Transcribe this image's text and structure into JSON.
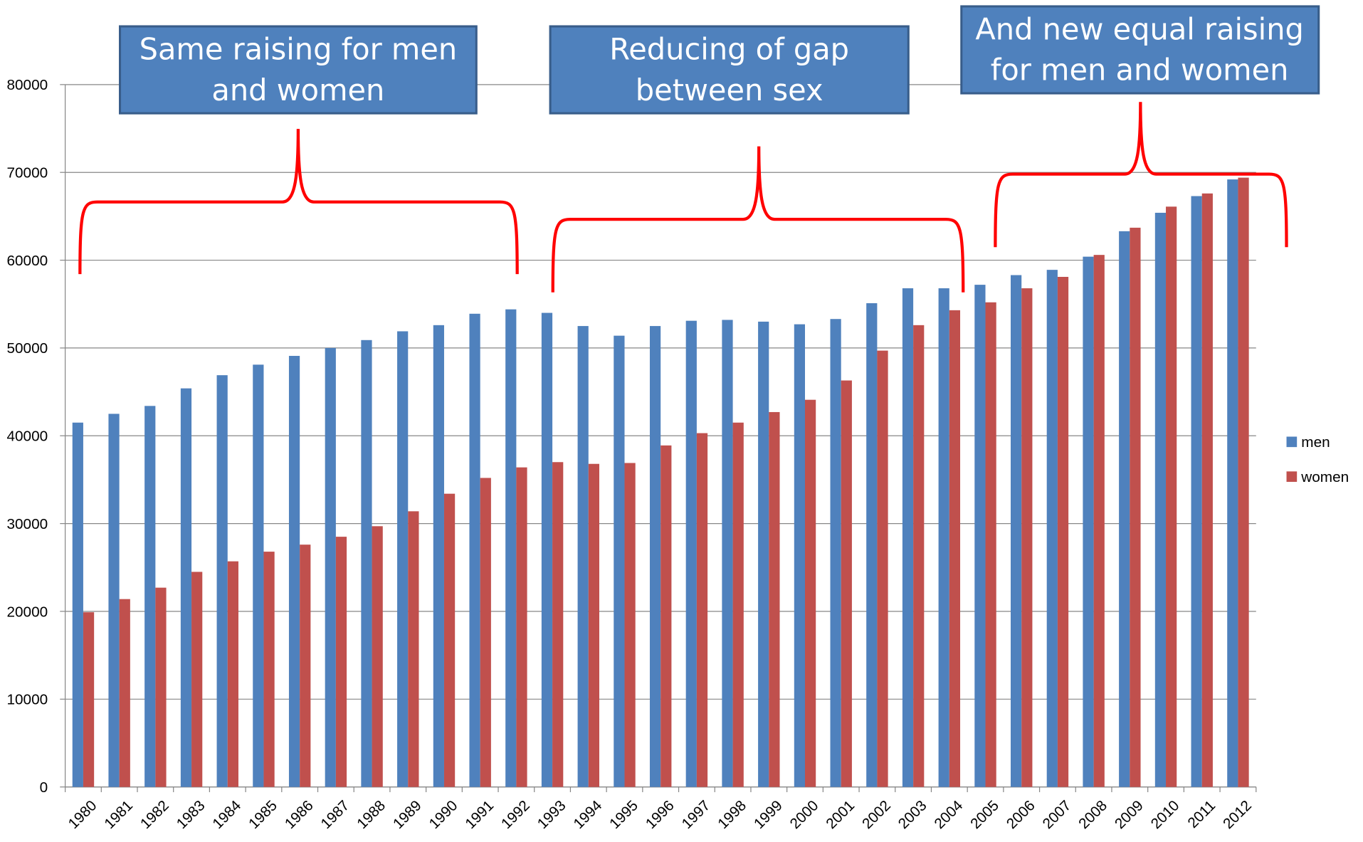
{
  "chart_data": {
    "type": "bar",
    "categories": [
      "1980",
      "1981",
      "1982",
      "1983",
      "1984",
      "1985",
      "1986",
      "1987",
      "1988",
      "1989",
      "1990",
      "1991",
      "1992",
      "1993",
      "1994",
      "1995",
      "1996",
      "1997",
      "1998",
      "1999",
      "2000",
      "2001",
      "2002",
      "2003",
      "2004",
      "2005",
      "2006",
      "2007",
      "2008",
      "2009",
      "2010",
      "2011",
      "2012"
    ],
    "series": [
      {
        "name": "men",
        "color": "#4f81bd",
        "values": [
          41500,
          42500,
          43400,
          45400,
          46900,
          48100,
          49100,
          50000,
          50900,
          51900,
          52600,
          53900,
          54400,
          54000,
          52500,
          51400,
          52500,
          53100,
          53200,
          53000,
          52700,
          53300,
          55100,
          56800,
          56800,
          57200,
          58300,
          58900,
          60400,
          63300,
          65400,
          67300,
          69200
        ]
      },
      {
        "name": "women",
        "color": "#c0504d",
        "values": [
          19900,
          21400,
          22700,
          24500,
          25700,
          26800,
          27600,
          28500,
          29700,
          31400,
          33400,
          35200,
          36400,
          37000,
          36800,
          36900,
          38900,
          40300,
          41500,
          42700,
          44100,
          46300,
          49700,
          52600,
          54300,
          55200,
          56800,
          58100,
          60600,
          63700,
          66100,
          67600,
          69400
        ]
      }
    ],
    "ylim": [
      0,
      80000
    ],
    "yticks": [
      0,
      10000,
      20000,
      30000,
      40000,
      50000,
      60000,
      70000,
      80000
    ],
    "grid": true,
    "legend": "right",
    "annotations": [
      {
        "lines": [
          "Same raising for men",
          "and women"
        ]
      },
      {
        "lines": [
          "Reducing of gap",
          "between sex"
        ]
      },
      {
        "lines": [
          "And new equal raising",
          "for men and women"
        ]
      }
    ]
  }
}
